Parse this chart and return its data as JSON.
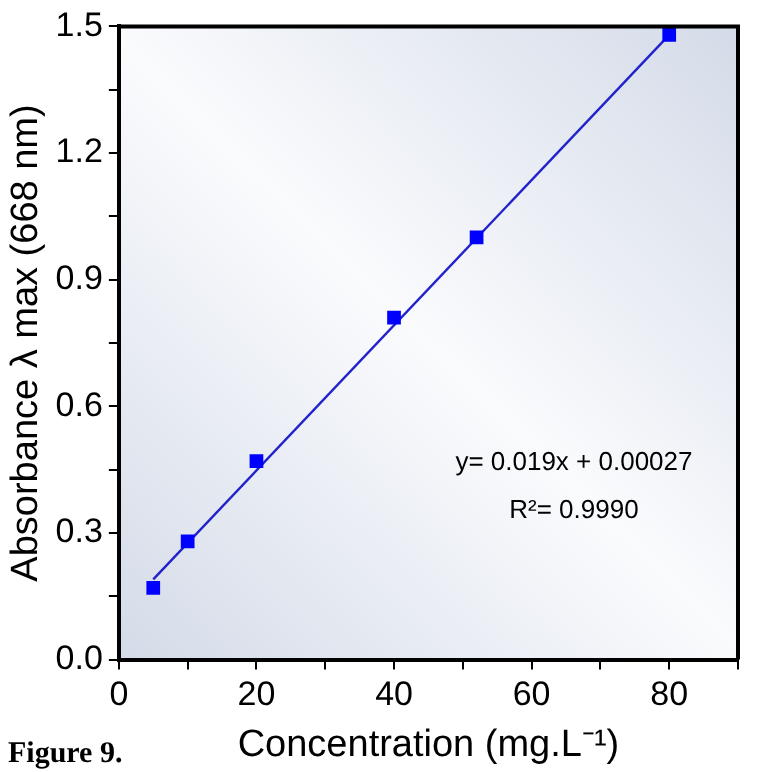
{
  "chart_data": {
    "type": "scatter",
    "xlabel": "Concentration (mg.L⁻¹)",
    "ylabel": "Absorbance λ max (668 nm)",
    "x": [
      5,
      10,
      20,
      40,
      52,
      80
    ],
    "series": [
      {
        "type": "scatter",
        "color": "#0000ff",
        "marker": "square",
        "values": [
          0.17,
          0.28,
          0.47,
          0.81,
          1.0,
          1.48
        ]
      },
      {
        "type": "line",
        "color": "#2222cc",
        "marker": "none",
        "x": [
          5,
          80
        ],
        "values": [
          0.19,
          1.48
        ]
      }
    ],
    "xlim": [
      0,
      90
    ],
    "xticks": [
      0,
      {
        "value": 10,
        "label": null
      },
      20,
      {
        "value": 30,
        "label": null
      },
      40,
      {
        "value": 50,
        "label": null
      },
      60,
      {
        "value": 70,
        "label": null
      },
      80,
      {
        "value": 90,
        "label": null
      }
    ],
    "ylim": [
      0,
      1.5
    ],
    "yticks": [
      {
        "value": 0,
        "label": "0.0"
      },
      {
        "value": 0.15,
        "label": null
      },
      0.3,
      {
        "value": 0.45,
        "label": null
      },
      0.6,
      {
        "value": 0.75,
        "label": null
      },
      0.9,
      {
        "value": 1.05,
        "label": null
      },
      1.2,
      {
        "value": 1.35,
        "label": null
      },
      1.5
    ],
    "grid": false,
    "legend": false,
    "annotations": [
      "y= 0.019x + 0.00027",
      "R²= 0.9990",
      "Figure 9."
    ]
  }
}
